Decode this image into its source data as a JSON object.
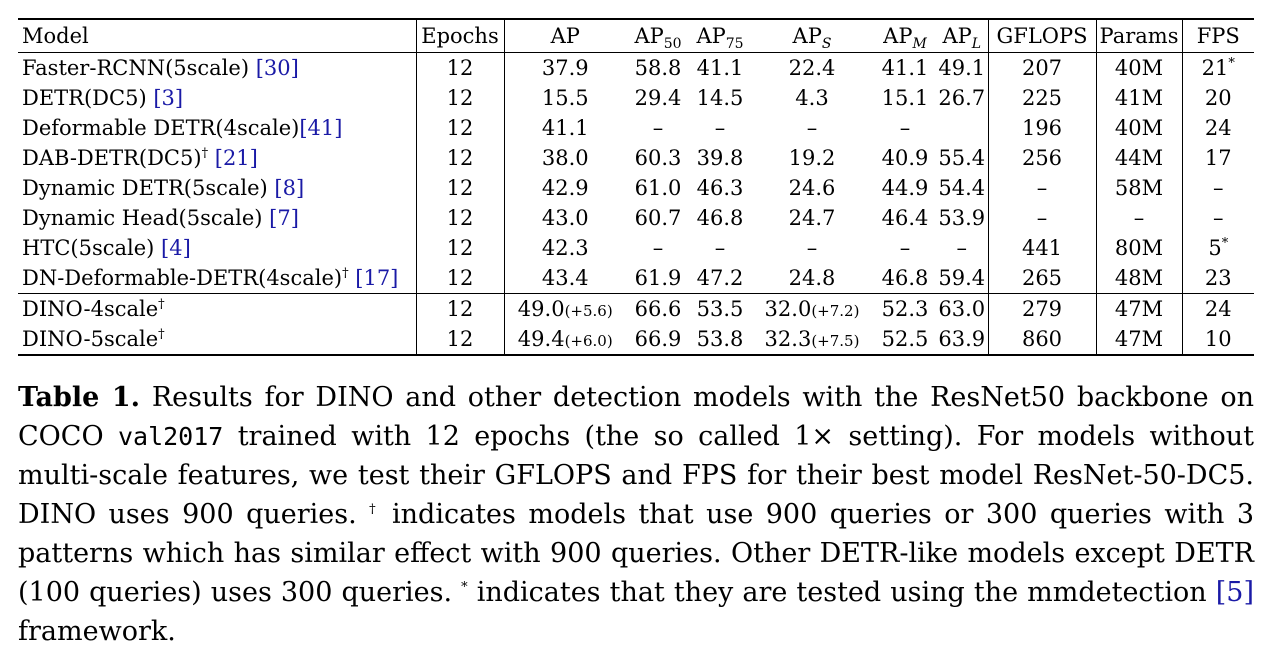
{
  "table": {
    "headers": {
      "model": "Model",
      "epochs": "Epochs",
      "ap": "AP",
      "ap50_main": "AP",
      "ap50_sub": "50",
      "ap75_main": "AP",
      "ap75_sub": "75",
      "aps_main": "AP",
      "aps_sub": "S",
      "apm_main": "AP",
      "apm_sub": "M",
      "apl_main": "AP",
      "apl_sub": "L",
      "gflops": "GFLOPS",
      "params": "Params",
      "fps": "FPS"
    },
    "rows": [
      {
        "name": "Faster-RCNN(5scale) ",
        "mark": "",
        "ref": "[30]",
        "epochs": "12",
        "ap": "37.9",
        "ap50": "58.8",
        "ap75": "41.1",
        "aps": "22.4",
        "apm": "41.1",
        "apl": "49.1",
        "gflops": "207",
        "params": "40M",
        "fps": "21",
        "fps_mark": "*"
      },
      {
        "name": "DETR(DC5) ",
        "mark": "",
        "ref": "[3]",
        "epochs": "12",
        "ap": "15.5",
        "ap50": "29.4",
        "ap75": "14.5",
        "aps": "4.3",
        "apm": "15.1",
        "apl": "26.7",
        "gflops": "225",
        "params": "41M",
        "fps": "20",
        "fps_mark": ""
      },
      {
        "name": "Deformable DETR(4scale)",
        "mark": "",
        "ref": "[41]",
        "epochs": "12",
        "ap": "41.1",
        "ap50": "–",
        "ap75": "–",
        "aps": "–",
        "apm": "–",
        "apl": "",
        "gflops": "196",
        "params": "40M",
        "fps": "24",
        "fps_mark": ""
      },
      {
        "name": "DAB-DETR(DC5)",
        "mark": "†",
        "ref": "[21]",
        "epochs": "12",
        "ap": "38.0",
        "ap50": "60.3",
        "ap75": "39.8",
        "aps": "19.2",
        "apm": "40.9",
        "apl": "55.4",
        "gflops": "256",
        "params": "44M",
        "fps": "17",
        "fps_mark": ""
      },
      {
        "name": "Dynamic DETR(5scale) ",
        "mark": "",
        "ref": "[8]",
        "epochs": "12",
        "ap": "42.9",
        "ap50": "61.0",
        "ap75": "46.3",
        "aps": "24.6",
        "apm": "44.9",
        "apl": "54.4",
        "gflops": "–",
        "params": "58M",
        "fps": "–",
        "fps_mark": ""
      },
      {
        "name": "Dynamic Head(5scale) ",
        "mark": "",
        "ref": "[7]",
        "epochs": "12",
        "ap": "43.0",
        "ap50": "60.7",
        "ap75": "46.8",
        "aps": "24.7",
        "apm": "46.4",
        "apl": "53.9",
        "gflops": "–",
        "params": "–",
        "fps": "–",
        "fps_mark": ""
      },
      {
        "name": "HTC(5scale) ",
        "mark": "",
        "ref": "[4]",
        "epochs": "12",
        "ap": "42.3",
        "ap50": "–",
        "ap75": "–",
        "aps": "–",
        "apm": "–",
        "apl": "–",
        "gflops": "441",
        "params": "80M",
        "fps": "5",
        "fps_mark": "*"
      },
      {
        "name": "DN-Deformable-DETR(4scale)",
        "mark": "†",
        "ref": "[17]",
        "epochs": "12",
        "ap": "43.4",
        "ap50": "61.9",
        "ap75": "47.2",
        "aps": "24.8",
        "apm": "46.8",
        "apl": "59.4",
        "gflops": "265",
        "params": "48M",
        "fps": "23",
        "fps_mark": ""
      }
    ],
    "dino_rows": [
      {
        "name": "DINO-4scale",
        "mark": "†",
        "epochs": "12",
        "ap": "49.0",
        "ap_gain": "(+5.6)",
        "ap50": "66.6",
        "ap75": "53.5",
        "aps": "32.0",
        "aps_gain": "(+7.2)",
        "apm": "52.3",
        "apl": "63.0",
        "gflops": "279",
        "params": "47M",
        "fps": "24"
      },
      {
        "name": "DINO-5scale",
        "mark": "†",
        "epochs": "12",
        "ap": "49.4",
        "ap_gain": "(+6.0)",
        "ap50": "66.9",
        "ap75": "53.8",
        "aps": "32.3",
        "aps_gain": "(+7.5)",
        "apm": "52.5",
        "apl": "63.9",
        "gflops": "860",
        "params": "47M",
        "fps": "10"
      }
    ]
  },
  "caption": {
    "label": "Table 1.",
    "text_1": " Results for DINO and other detection models with the ResNet50 backbone on COCO ",
    "mono": "val2017",
    "text_2": " trained with 12 epochs (the so called 1× setting). For models without multi-scale features, we test their GFLOPS and FPS for their best model ResNet-50-DC5. DINO uses 900 queries. ",
    "dagger": "†",
    "text_3": " indicates models that use 900 queries or 300 queries with 3 patterns which has similar effect with 900 queries. Other DETR-like models except DETR (100 queries) uses 300 queries. ",
    "star": "*",
    "text_4": " indicates that they are tested using the mmdetection ",
    "ref": "[5]",
    "text_5": " framework."
  }
}
